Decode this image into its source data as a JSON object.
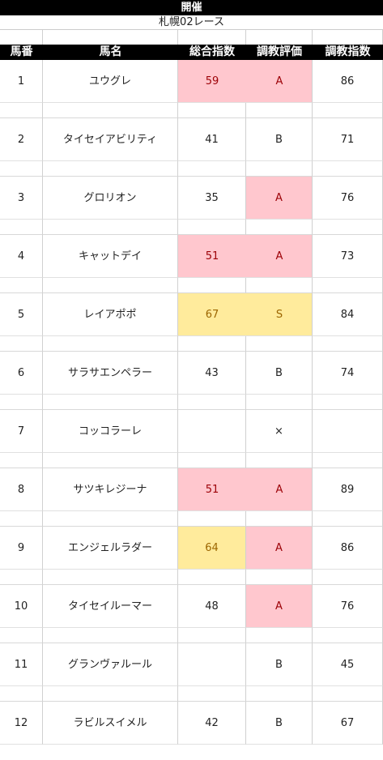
{
  "title": "開催",
  "subtitle": "札幌02レース",
  "headers": [
    "馬番",
    "馬名",
    "総合指数",
    "調教評価",
    "調教指数"
  ],
  "rows": [
    {
      "num": "1",
      "name": "ユウグレ",
      "score": "59",
      "grade": "A",
      "index": "86"
    },
    {
      "num": "2",
      "name": "タイセイアビリティ",
      "score": "41",
      "grade": "B",
      "index": "71"
    },
    {
      "num": "3",
      "name": "グロリオン",
      "score": "35",
      "grade": "A",
      "index": "76"
    },
    {
      "num": "4",
      "name": "キャットデイ",
      "score": "51",
      "grade": "A",
      "index": "73"
    },
    {
      "num": "5",
      "name": "レイアポポ",
      "score": "67",
      "grade": "S",
      "index": "84"
    },
    {
      "num": "6",
      "name": "サラサエンペラー",
      "score": "43",
      "grade": "B",
      "index": "74"
    },
    {
      "num": "7",
      "name": "コッコラーレ",
      "score": "",
      "grade": "×",
      "index": ""
    },
    {
      "num": "8",
      "name": "サツキレジーナ",
      "score": "51",
      "grade": "A",
      "index": "89"
    },
    {
      "num": "9",
      "name": "エンジェルラダー",
      "score": "64",
      "grade": "A",
      "index": "86"
    },
    {
      "num": "10",
      "name": "タイセイルーマー",
      "score": "48",
      "grade": "A",
      "index": "76"
    },
    {
      "num": "11",
      "name": "グランヴァルール",
      "score": "",
      "grade": "B",
      "index": "45"
    },
    {
      "num": "12",
      "name": "ラビルスイメル",
      "score": "42",
      "grade": "B",
      "index": "67"
    }
  ],
  "colors": {
    "highlight_pink": "#ffc7ce",
    "highlight_yellow": "#ffeb9c"
  }
}
